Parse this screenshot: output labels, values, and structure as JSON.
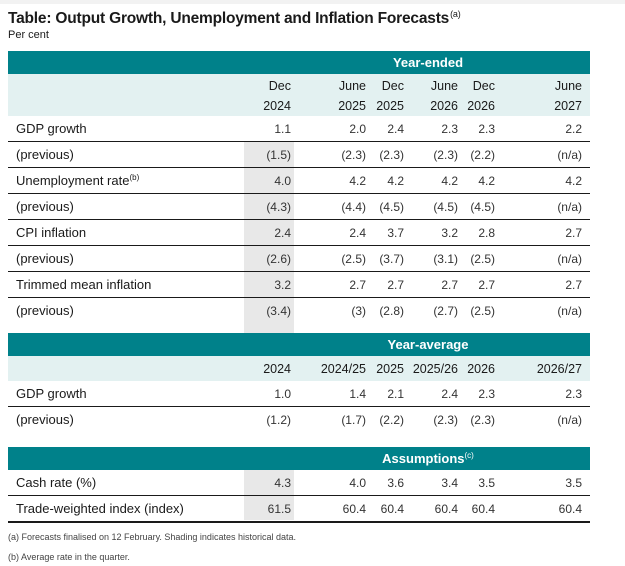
{
  "title": "Table: Output Growth, Unemployment and Inflation Forecasts",
  "title_note": "(a)",
  "subtitle": "Per cent",
  "colors": {
    "band": "#00818a",
    "header_bg": "#e3f1f1",
    "shade": "#e8e8e8"
  },
  "year_ended": {
    "band_label": "Year-ended",
    "columns": [
      {
        "line1": "Dec",
        "line2": "2024"
      },
      {
        "line1": "June",
        "line2": "2025"
      },
      {
        "line1": "Dec",
        "line2": "2025"
      },
      {
        "line1": "June",
        "line2": "2026"
      },
      {
        "line1": "Dec",
        "line2": "2026"
      },
      {
        "line1": "June",
        "line2": "2027"
      }
    ],
    "rows": [
      {
        "label": "GDP growth",
        "note": "",
        "values": [
          "1.1",
          "2.0",
          "2.4",
          "2.3",
          "2.3",
          "2.2"
        ]
      },
      {
        "label": "(previous)",
        "note": "",
        "values": [
          "(1.5)",
          "(2.3)",
          "(2.3)",
          "(2.3)",
          "(2.2)",
          "(n/a)"
        ]
      },
      {
        "label": "Unemployment rate",
        "note": "(b)",
        "values": [
          "4.0",
          "4.2",
          "4.2",
          "4.2",
          "4.2",
          "4.2"
        ]
      },
      {
        "label": "(previous)",
        "note": "",
        "values": [
          "(4.3)",
          "(4.4)",
          "(4.5)",
          "(4.5)",
          "(4.5)",
          "(n/a)"
        ]
      },
      {
        "label": "CPI inflation",
        "note": "",
        "values": [
          "2.4",
          "2.4",
          "3.7",
          "3.2",
          "2.8",
          "2.7"
        ]
      },
      {
        "label": "(previous)",
        "note": "",
        "values": [
          "(2.6)",
          "(2.5)",
          "(3.7)",
          "(3.1)",
          "(2.5)",
          "(n/a)"
        ]
      },
      {
        "label": "Trimmed mean inflation",
        "note": "",
        "values": [
          "3.2",
          "2.7",
          "2.7",
          "2.7",
          "2.7",
          "2.7"
        ]
      },
      {
        "label": "(previous)",
        "note": "",
        "values": [
          "(3.4)",
          "(3)",
          "(2.8)",
          "(2.7)",
          "(2.5)",
          "(n/a)"
        ]
      }
    ]
  },
  "year_average": {
    "band_label": "Year-average",
    "columns": [
      "2024",
      "2024/25",
      "2025",
      "2025/26",
      "2026",
      "2026/27"
    ],
    "rows": [
      {
        "label": "GDP growth",
        "values": [
          "1.0",
          "1.4",
          "2.1",
          "2.4",
          "2.3",
          "2.3"
        ]
      },
      {
        "label": "(previous)",
        "values": [
          "(1.2)",
          "(1.7)",
          "(2.2)",
          "(2.3)",
          "(2.3)",
          "(n/a)"
        ]
      }
    ]
  },
  "assumptions": {
    "band_label": "Assumptions",
    "band_note": "(c)",
    "rows": [
      {
        "label": "Cash rate (%)",
        "values": [
          "4.3",
          "4.0",
          "3.6",
          "3.4",
          "3.5",
          "3.5"
        ]
      },
      {
        "label": "Trade-weighted index (index)",
        "values": [
          "61.5",
          "60.4",
          "60.4",
          "60.4",
          "60.4",
          "60.4"
        ]
      }
    ]
  },
  "footnotes": [
    "(a)  Forecasts finalised on 12 February. Shading indicates historical data.",
    "(b)  Average rate in the quarter."
  ]
}
